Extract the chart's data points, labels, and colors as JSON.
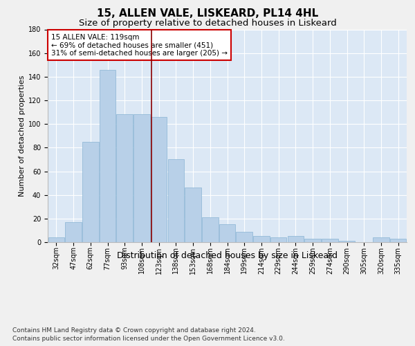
{
  "title1": "15, ALLEN VALE, LISKEARD, PL14 4HL",
  "title2": "Size of property relative to detached houses in Liskeard",
  "xlabel": "Distribution of detached houses by size in Liskeard",
  "ylabel": "Number of detached properties",
  "categories": [
    "32sqm",
    "47sqm",
    "62sqm",
    "77sqm",
    "93sqm",
    "108sqm",
    "123sqm",
    "138sqm",
    "153sqm",
    "168sqm",
    "184sqm",
    "199sqm",
    "214sqm",
    "229sqm",
    "244sqm",
    "259sqm",
    "274sqm",
    "290sqm",
    "305sqm",
    "320sqm",
    "335sqm"
  ],
  "values": [
    4,
    17,
    85,
    146,
    108,
    108,
    106,
    70,
    46,
    21,
    15,
    9,
    5,
    4,
    5,
    3,
    3,
    1,
    0,
    4,
    3
  ],
  "bar_color": "#b8d0e8",
  "bar_edge_color": "#89b4d4",
  "vline_x": 5.55,
  "vline_color": "#8b0000",
  "ylim": [
    0,
    180
  ],
  "yticks": [
    0,
    20,
    40,
    60,
    80,
    100,
    120,
    140,
    160,
    180
  ],
  "annotation_text": "15 ALLEN VALE: 119sqm\n← 69% of detached houses are smaller (451)\n31% of semi-detached houses are larger (205) →",
  "annotation_box_color": "#ffffff",
  "annotation_box_edge": "#cc0000",
  "footer1": "Contains HM Land Registry data © Crown copyright and database right 2024.",
  "footer2": "Contains public sector information licensed under the Open Government Licence v3.0.",
  "background_color": "#f0f0f0",
  "plot_background": "#dce8f5",
  "grid_color": "#ffffff",
  "title_fontsize": 11,
  "subtitle_fontsize": 9.5,
  "xlabel_fontsize": 9,
  "ylabel_fontsize": 8,
  "tick_fontsize": 7,
  "annotation_fontsize": 7.5,
  "footer_fontsize": 6.5
}
